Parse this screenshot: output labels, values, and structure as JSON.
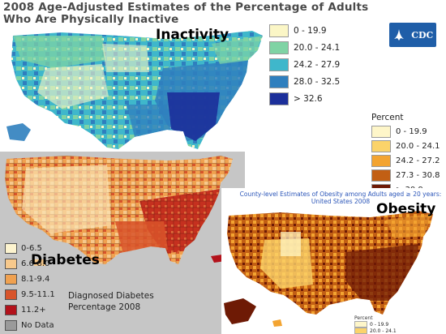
{
  "inactivity": {
    "title": "2008 Age-Adjusted Estimates of the Percentage of Adults Who Are Physically Inactive",
    "label": "Inactivity",
    "legend": [
      {
        "label": "0 - 19.9",
        "color": "#fbf6c6"
      },
      {
        "label": "20.0 - 24.1",
        "color": "#7fd3a4"
      },
      {
        "label": "24.2 - 27.9",
        "color": "#3fb7cb"
      },
      {
        "label": "28.0 - 32.5",
        "color": "#2f7fbe"
      },
      {
        "label": "> 32.6",
        "color": "#1c2f9a"
      }
    ],
    "logo": "CDC"
  },
  "obesity_legend_main": {
    "header": "Percent",
    "items": [
      {
        "label": "0 - 19.9",
        "color": "#fef6c9"
      },
      {
        "label": "20.0 - 24.1",
        "color": "#fbd36a"
      },
      {
        "label": "24.2 - 27.2",
        "color": "#f3a431"
      },
      {
        "label": "27.3 - 30.8",
        "color": "#c25f14"
      },
      {
        "label": "≥ 30.9",
        "color": "#6e1a05"
      }
    ]
  },
  "diabetes": {
    "label": "Diabetes",
    "legend": [
      {
        "label": "0-6.5",
        "color": "#fdf4cf"
      },
      {
        "label": "6.6-8.0",
        "color": "#f7c98c"
      },
      {
        "label": "8.1-9.4",
        "color": "#f0a150"
      },
      {
        "label": "9.5-11.1",
        "color": "#d8542a"
      },
      {
        "label": "11.2+",
        "color": "#b3121b"
      },
      {
        "label": "No Data",
        "color": "#9a9a9a"
      }
    ],
    "caption_line1": "Diagnosed Diabetes",
    "caption_line2": "Percentage  2008"
  },
  "obesity": {
    "label": "Obesity",
    "title_line1": "County-level Estimates of Obesity among Adults aged ≥ 20 years:",
    "title_line2": "United States 2008",
    "legend_header": "Percent",
    "legend": [
      {
        "label": "0 - 19.9",
        "color": "#fef6c9"
      },
      {
        "label": "20.0 - 24.1",
        "color": "#fbd36a"
      }
    ]
  }
}
